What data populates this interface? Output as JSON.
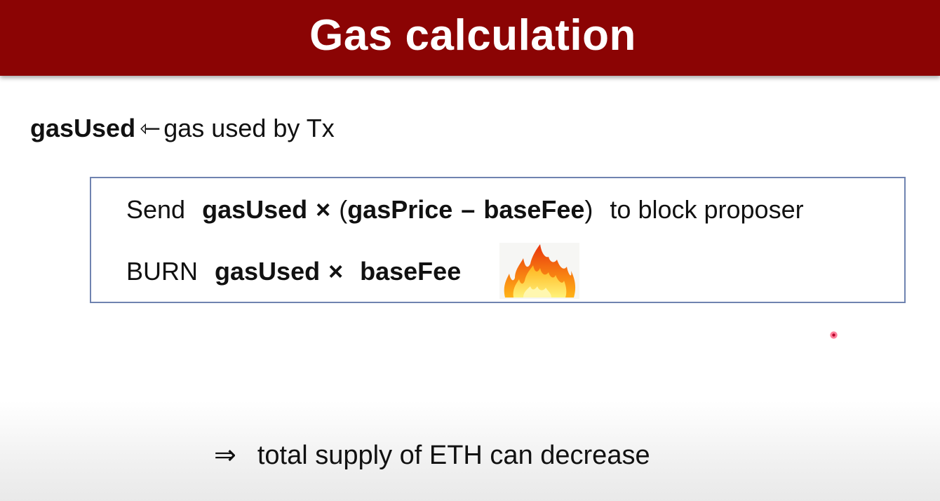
{
  "slide": {
    "title": "Gas calculation",
    "definition": {
      "term": "gasUsed",
      "arrow": "⇽",
      "description": "gas used by Tx"
    },
    "box": {
      "row1": {
        "verb": "Send",
        "term1": "gasUsed",
        "times": "×",
        "open_paren": "(",
        "term2": "gasPrice",
        "minus": "–",
        "term3": "baseFee",
        "close_paren": ")",
        "suffix": "to block proposer"
      },
      "row2": {
        "verb": "BURN",
        "term1": "gasUsed",
        "times": "×",
        "term2": "baseFee",
        "icon": "fire-icon"
      }
    },
    "conclusion": {
      "symbol": "⇒",
      "text": "total supply of ETH can decrease"
    },
    "colors": {
      "title_bar": "#8b0404",
      "box_border": "#6f83b0",
      "laser_pointer": "#d10033"
    }
  }
}
